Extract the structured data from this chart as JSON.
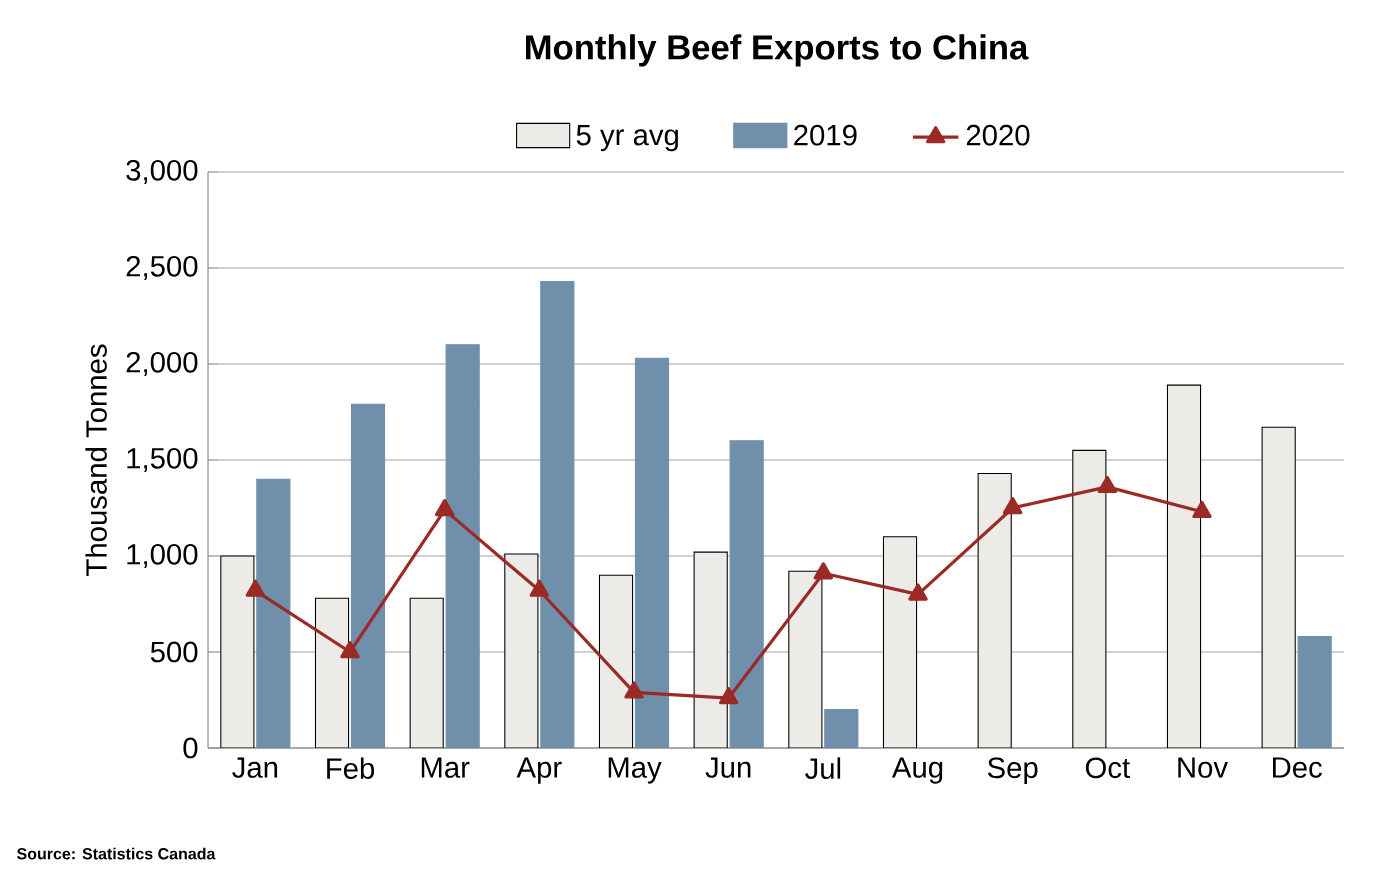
{
  "chart_data": {
    "type": "bar",
    "title": "Monthly Beef Exports to China",
    "ylabel": "Thousand Tonnes",
    "categories": [
      "Jan",
      "Feb",
      "Mar",
      "Apr",
      "May",
      "Jun",
      "Jul",
      "Aug",
      "Sep",
      "Oct",
      "Nov",
      "Dec"
    ],
    "series": [
      {
        "name": "5 yr avg",
        "color": "#ecebe8",
        "values": [
          1000,
          780,
          780,
          1010,
          900,
          1020,
          920,
          1100,
          1430,
          1550,
          1890,
          1670
        ]
      },
      {
        "name": "2019",
        "color": "#6f8fab",
        "values": [
          1400,
          1790,
          2100,
          2430,
          2030,
          1600,
          200,
          null,
          null,
          null,
          null,
          580
        ]
      },
      {
        "name": "2020",
        "type": "line",
        "color": "#9b2a25",
        "marker": "triangle",
        "values": [
          820,
          500,
          1240,
          820,
          290,
          260,
          910,
          800,
          1250,
          1360,
          1230,
          null
        ]
      }
    ],
    "ylim": [
      0,
      3000
    ],
    "yticks": [
      0,
      500,
      {
        "value": 1000,
        "label": "1,000"
      },
      {
        "value": 1500,
        "label": "1,500"
      },
      {
        "value": 2000,
        "label": "2,000"
      },
      {
        "value": 2500,
        "label": "2,500"
      },
      {
        "value": 3000,
        "label": "3,000"
      }
    ],
    "grid": "y",
    "legend": "top",
    "annotations": [
      "Source: Statistics Canada"
    ]
  }
}
